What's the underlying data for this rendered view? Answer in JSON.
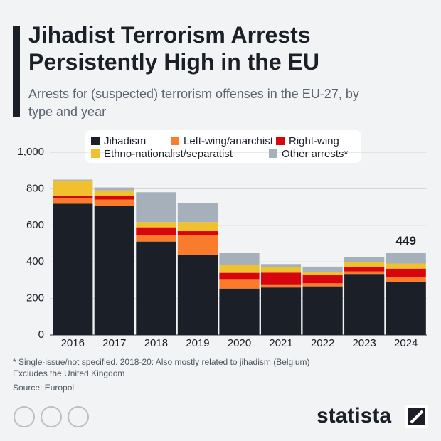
{
  "chart_data": {
    "type": "stacked_bar",
    "title": "Jihadist Terrorism Arrests Persistently High in the EU",
    "subtitle": "Arrests for (suspected) terrorism offenses in the EU-27, by type and year",
    "categories": [
      "2016",
      "2017",
      "2018",
      "2019",
      "2020",
      "2021",
      "2022",
      "2023",
      "2024"
    ],
    "series": [
      {
        "name": "Jihadism",
        "color": "#1b1f27",
        "values": [
          718,
          705,
          511,
          436,
          254,
          260,
          266,
          334,
          289
        ]
      },
      {
        "name": "Left-wing/anarchist",
        "color": "#f97b2c",
        "values": [
          31,
          36,
          34,
          111,
          52,
          17,
          17,
          14,
          28
        ]
      },
      {
        "name": "Right-wing",
        "color": "#d7060e",
        "values": [
          12,
          20,
          44,
          21,
          34,
          64,
          46,
          26,
          46
        ]
      },
      {
        "name": "Ethno-nationalist/separatist",
        "color": "#f0c12f",
        "values": [
          84,
          30,
          29,
          50,
          42,
          30,
          17,
          26,
          28
        ]
      },
      {
        "name": "Other arrests*",
        "color": "#a6b0ba",
        "values": [
          5,
          16,
          163,
          105,
          67,
          17,
          28,
          26,
          58
        ]
      }
    ],
    "annotation": "449",
    "ylim": [
      0,
      1000
    ],
    "yticks": [
      0,
      200,
      400,
      600,
      800,
      {
        "value": 1000,
        "label": "1,000"
      }
    ],
    "grid": true,
    "notes": [
      "* Single-issue/not specified. 2018-20: Also mostly related to jihadism (Belgium)",
      "Excludes the United Kingdom"
    ],
    "source": "Source: Europol",
    "brand": "statista"
  }
}
